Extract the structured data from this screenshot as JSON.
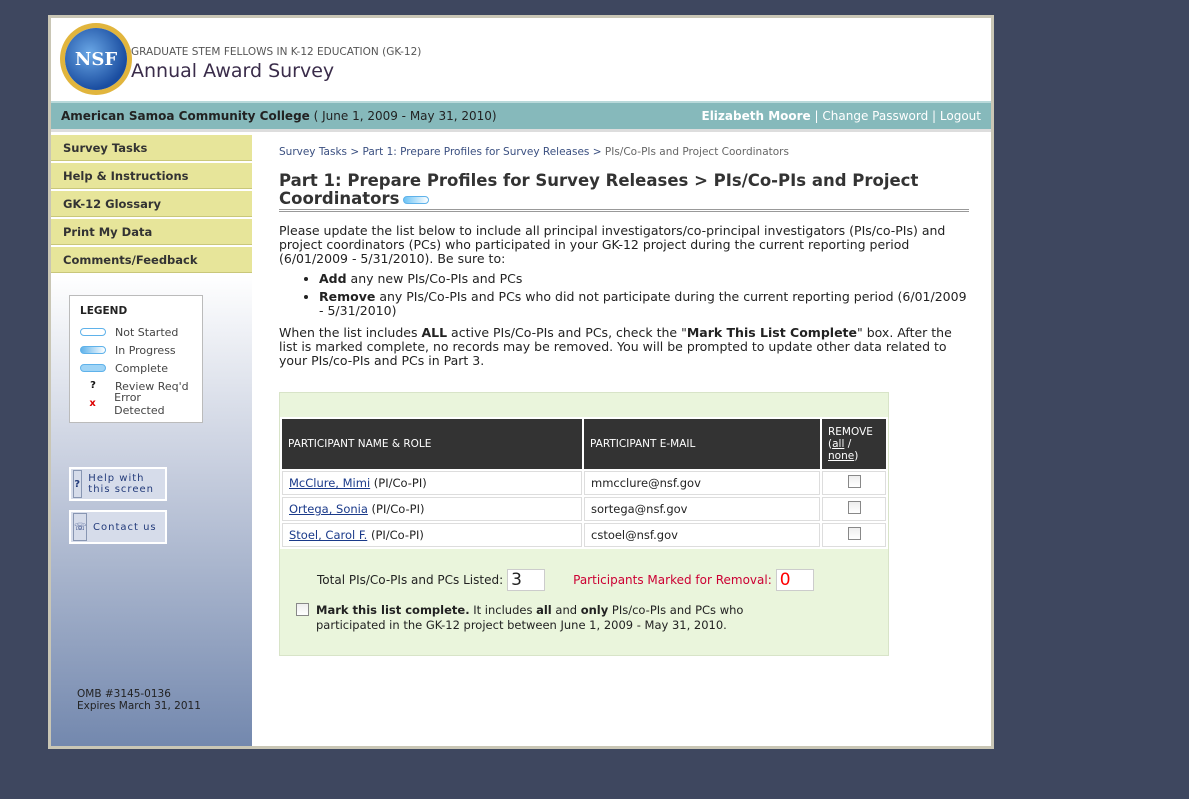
{
  "header": {
    "logo_text": "NSF",
    "subtitle": "GRADUATE STEM FELLOWS IN K-12 EDUCATION (GK-12)",
    "title": "Annual Award Survey"
  },
  "bar": {
    "institution": "American Samoa Community College",
    "period": "( June 1, 2009 - May 31, 2010)",
    "user": "Elizabeth Moore",
    "change_password": "Change Password",
    "logout": "Logout",
    "sep": "|"
  },
  "sidebar": {
    "items": [
      {
        "label": "Survey Tasks"
      },
      {
        "label": "Help & Instructions"
      },
      {
        "label": "GK-12 Glossary"
      },
      {
        "label": "Print My Data"
      },
      {
        "label": "Comments/Feedback"
      }
    ],
    "legend": {
      "title": "LEGEND",
      "items": [
        {
          "label": "Not Started"
        },
        {
          "label": "In Progress"
        },
        {
          "label": "Complete"
        },
        {
          "label": "Review Req'd",
          "mark": "?"
        },
        {
          "label": "Error Detected",
          "mark": "x"
        }
      ]
    },
    "help_button": "Help with this screen",
    "contact_button": "Contact us",
    "omb": "OMB #3145-0136",
    "expires": "Expires March 31, 2011"
  },
  "breadcrumb": {
    "items": [
      "Survey Tasks",
      "Part 1: Prepare Profiles for Survey Releases",
      "PIs/Co-PIs and Project Coordinators"
    ],
    "sep": ">"
  },
  "page_title": "Part 1: Prepare Profiles for Survey Releases > PIs/Co-PIs and Project Coordinators",
  "status": "In Progress",
  "intro": "Please update the list below to include all principal investigators/co-principal investigators (PIs/co-PIs) and project coordinators (PCs) who participated in your GK-12 project during the current reporting period (6/01/2009 - 5/31/2010). Be sure to:",
  "bullets": [
    {
      "bold": "Add",
      "text": " any new PIs/Co-PIs and PCs"
    },
    {
      "bold": "Remove",
      "text": " any PIs/Co-PIs and PCs who did not participate during the current reporting period (6/01/2009 - 5/31/2010)"
    }
  ],
  "note": {
    "a": "When the list includes ",
    "b": "ALL",
    "c": " active PIs/Co-PIs and PCs, check the \"",
    "d": "Mark This List Complete",
    "e": "\" box. After the list is marked complete, no records may be removed. You will be prompted to update other data related to your PIs/co-PIs and PCs in Part 3."
  },
  "table": {
    "headers": [
      "PARTICIPANT NAME & ROLE",
      "PARTICIPANT E-MAIL",
      "REMOVE"
    ],
    "all": "all",
    "none": "none",
    "rows": [
      {
        "name": "McClure, Mimi",
        "role": "(PI/Co-PI)",
        "email": "mmcclure@nsf.gov",
        "remove": false
      },
      {
        "name": "Ortega, Sonia",
        "role": "(PI/Co-PI)",
        "email": "sortega@nsf.gov",
        "remove": false
      },
      {
        "name": "Stoel, Carol F.",
        "role": "(PI/Co-PI)",
        "email": "cstoel@nsf.gov",
        "remove": false
      }
    ]
  },
  "totals": {
    "listed_label": "Total PIs/Co-PIs and PCs Listed:",
    "listed": "3",
    "removal_label": "Participants Marked for Removal:",
    "removal": "0"
  },
  "mark": {
    "bold": "Mark this list complete.",
    "t1": " It includes ",
    "all": "all",
    "t2": " and ",
    "only": "only",
    "t3": " PIs/co-PIs and PCs who participated in the GK-12 project between June 1, 2009 - May 31, 2010.",
    "checked": false
  },
  "colors": {
    "background": "#3e475f",
    "nav": "#e7e59a",
    "bar": "#86b9bb",
    "removal": "#cc0033"
  }
}
